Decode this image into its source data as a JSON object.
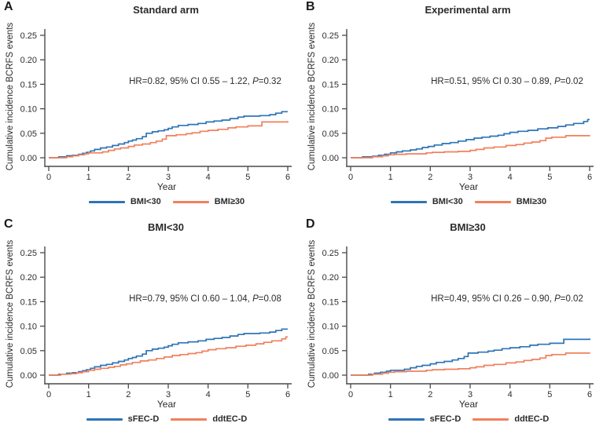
{
  "figure": {
    "background": "#ffffff",
    "colors": {
      "blue": "#2e74b5",
      "orange": "#f0805c",
      "axis": "#4a4a4a",
      "text": "#2e2e2e"
    }
  },
  "chart_data": {
    "type": "line",
    "subtype": "step-cumulative-incidence",
    "xlabel": "Year",
    "ylabel": "Cumulative incidence BCRFS events",
    "xlim": [
      0,
      6
    ],
    "ylim": [
      0,
      0.25
    ],
    "grid": false,
    "legend_position": "bottom",
    "xticks": [
      {
        "v": 0,
        "label": "0"
      },
      {
        "v": 1,
        "label": "1"
      },
      {
        "v": 2,
        "label": "2"
      },
      {
        "v": 3,
        "label": "3"
      },
      {
        "v": 4,
        "label": "4"
      },
      {
        "v": 5,
        "label": "5"
      },
      {
        "v": 6,
        "label": "6"
      }
    ],
    "yticks": [
      {
        "v": 0,
        "label": "0.00"
      },
      {
        "v": 0.05,
        "label": "0.05"
      },
      {
        "v": 0.1,
        "label": "0.10"
      },
      {
        "v": 0.15,
        "label": "0.15"
      },
      {
        "v": 0.2,
        "label": "0.20"
      },
      {
        "v": 0.25,
        "label": "0.25"
      }
    ],
    "panels": [
      {
        "letter": "A",
        "title": "Standard arm",
        "annotation": {
          "pre": "HR=0.82, 95% CI 0.55 – 1.22, ",
          "p": "P",
          "post": "=0.32"
        },
        "series": [
          {
            "name": "BMI<30",
            "color": "#2e74b5",
            "x": [
              0,
              0.25,
              0.45,
              0.6,
              0.75,
              0.85,
              0.95,
              1.05,
              1.15,
              1.3,
              1.45,
              1.6,
              1.75,
              1.9,
              2.0,
              2.1,
              2.2,
              2.35,
              2.45,
              2.6,
              2.75,
              2.9,
              3.0,
              3.1,
              3.25,
              3.5,
              3.75,
              3.95,
              4.15,
              4.35,
              4.55,
              4.75,
              4.9,
              5.3,
              5.55,
              5.7,
              5.85,
              6.0
            ],
            "y": [
              0,
              0.002,
              0.004,
              0.005,
              0.007,
              0.009,
              0.011,
              0.014,
              0.017,
              0.02,
              0.022,
              0.025,
              0.028,
              0.031,
              0.034,
              0.036,
              0.039,
              0.043,
              0.05,
              0.053,
              0.055,
              0.057,
              0.06,
              0.063,
              0.066,
              0.068,
              0.07,
              0.073,
              0.075,
              0.077,
              0.08,
              0.083,
              0.085,
              0.086,
              0.088,
              0.091,
              0.094,
              0.094
            ]
          },
          {
            "name": "BMI≥30",
            "color": "#f0805c",
            "x": [
              0,
              0.45,
              0.6,
              0.75,
              0.9,
              1.0,
              1.35,
              1.5,
              1.65,
              1.8,
              2.0,
              2.15,
              2.35,
              2.55,
              2.7,
              2.85,
              2.95,
              3.2,
              3.45,
              3.6,
              3.8,
              4.0,
              4.25,
              4.5,
              4.7,
              5.0,
              5.35,
              6.0
            ],
            "y": [
              0,
              0.002,
              0.004,
              0.006,
              0.008,
              0.01,
              0.012,
              0.015,
              0.018,
              0.02,
              0.023,
              0.026,
              0.028,
              0.031,
              0.034,
              0.038,
              0.045,
              0.047,
              0.049,
              0.051,
              0.054,
              0.056,
              0.058,
              0.061,
              0.063,
              0.065,
              0.073,
              0.075
            ]
          }
        ]
      },
      {
        "letter": "B",
        "title": "Experimental arm",
        "annotation": {
          "pre": "HR=0.51, 95% CI 0.30 – 0.89, ",
          "p": "P",
          "post": "=0.02"
        },
        "series": [
          {
            "name": "BMI<30",
            "color": "#2e74b5",
            "x": [
              0,
              0.3,
              0.55,
              0.7,
              0.85,
              1.0,
              1.15,
              1.3,
              1.5,
              1.65,
              1.8,
              1.95,
              2.1,
              2.3,
              2.5,
              2.7,
              2.9,
              3.1,
              3.3,
              3.5,
              3.7,
              3.85,
              4.0,
              4.2,
              4.45,
              4.7,
              4.95,
              5.2,
              5.4,
              5.6,
              5.85,
              5.95,
              6.0
            ],
            "y": [
              0,
              0.002,
              0.003,
              0.005,
              0.007,
              0.01,
              0.012,
              0.014,
              0.016,
              0.018,
              0.021,
              0.023,
              0.026,
              0.029,
              0.031,
              0.034,
              0.037,
              0.04,
              0.042,
              0.044,
              0.046,
              0.049,
              0.052,
              0.054,
              0.056,
              0.059,
              0.061,
              0.064,
              0.067,
              0.07,
              0.074,
              0.078,
              0.078
            ]
          },
          {
            "name": "BMI≥30",
            "color": "#f0805c",
            "x": [
              0,
              0.55,
              0.8,
              0.95,
              1.1,
              1.4,
              1.9,
              2.05,
              2.35,
              2.7,
              3.0,
              3.15,
              3.35,
              3.6,
              3.9,
              4.15,
              4.35,
              4.55,
              4.75,
              4.9,
              5.05,
              5.4,
              6.0
            ],
            "y": [
              0,
              0.002,
              0.004,
              0.006,
              0.007,
              0.008,
              0.01,
              0.011,
              0.012,
              0.013,
              0.015,
              0.017,
              0.02,
              0.022,
              0.025,
              0.027,
              0.03,
              0.032,
              0.035,
              0.04,
              0.042,
              0.045,
              0.046
            ]
          }
        ]
      },
      {
        "letter": "C",
        "title": "BMI<30",
        "annotation": {
          "pre": "HR=0.79, 95% CI 0.60 – 1.04, ",
          "p": "P",
          "post": "=0.08"
        },
        "series": [
          {
            "name": "sFEC-D",
            "color": "#2e74b5",
            "x": [
              0,
              0.25,
              0.45,
              0.6,
              0.75,
              0.85,
              0.95,
              1.05,
              1.15,
              1.3,
              1.45,
              1.6,
              1.75,
              1.9,
              2.0,
              2.1,
              2.2,
              2.35,
              2.45,
              2.6,
              2.75,
              2.9,
              3.0,
              3.1,
              3.25,
              3.5,
              3.75,
              3.95,
              4.15,
              4.35,
              4.55,
              4.75,
              4.9,
              5.3,
              5.55,
              5.7,
              5.85,
              6.0
            ],
            "y": [
              0,
              0.002,
              0.004,
              0.005,
              0.007,
              0.009,
              0.011,
              0.014,
              0.017,
              0.02,
              0.022,
              0.025,
              0.028,
              0.031,
              0.034,
              0.036,
              0.039,
              0.043,
              0.05,
              0.053,
              0.055,
              0.057,
              0.06,
              0.063,
              0.066,
              0.068,
              0.07,
              0.073,
              0.075,
              0.077,
              0.08,
              0.083,
              0.085,
              0.086,
              0.088,
              0.091,
              0.094,
              0.094
            ]
          },
          {
            "name": "ddtEC-D",
            "color": "#f0805c",
            "x": [
              0,
              0.3,
              0.55,
              0.7,
              0.85,
              1.0,
              1.15,
              1.3,
              1.5,
              1.65,
              1.8,
              1.95,
              2.1,
              2.3,
              2.5,
              2.7,
              2.9,
              3.1,
              3.3,
              3.5,
              3.7,
              3.85,
              4.0,
              4.2,
              4.45,
              4.7,
              4.95,
              5.2,
              5.4,
              5.6,
              5.85,
              5.95,
              6.0
            ],
            "y": [
              0,
              0.002,
              0.003,
              0.005,
              0.007,
              0.01,
              0.012,
              0.014,
              0.016,
              0.018,
              0.021,
              0.023,
              0.026,
              0.029,
              0.031,
              0.034,
              0.037,
              0.04,
              0.042,
              0.044,
              0.046,
              0.049,
              0.052,
              0.054,
              0.056,
              0.059,
              0.061,
              0.064,
              0.067,
              0.07,
              0.074,
              0.078,
              0.078
            ]
          }
        ]
      },
      {
        "letter": "D",
        "title": "BMI≥30",
        "annotation": {
          "pre": "HR=0.49, 95% CI 0.26 – 0.90, ",
          "p": "P",
          "post": "=0.02"
        },
        "series": [
          {
            "name": "sFEC-D",
            "color": "#2e74b5",
            "x": [
              0,
              0.45,
              0.6,
              0.75,
              0.9,
              1.0,
              1.35,
              1.5,
              1.65,
              1.8,
              2.0,
              2.15,
              2.35,
              2.55,
              2.7,
              2.85,
              2.95,
              3.2,
              3.45,
              3.6,
              3.8,
              4.0,
              4.25,
              4.5,
              4.7,
              5.0,
              5.35,
              6.0
            ],
            "y": [
              0,
              0.002,
              0.004,
              0.006,
              0.008,
              0.01,
              0.012,
              0.015,
              0.018,
              0.02,
              0.023,
              0.026,
              0.028,
              0.031,
              0.034,
              0.038,
              0.045,
              0.047,
              0.049,
              0.051,
              0.054,
              0.056,
              0.058,
              0.061,
              0.063,
              0.065,
              0.073,
              0.075
            ]
          },
          {
            "name": "ddtEC-D",
            "color": "#f0805c",
            "x": [
              0,
              0.55,
              0.8,
              0.95,
              1.1,
              1.4,
              1.9,
              2.05,
              2.35,
              2.7,
              3.0,
              3.15,
              3.35,
              3.6,
              3.9,
              4.15,
              4.35,
              4.55,
              4.75,
              4.9,
              5.05,
              5.4,
              6.0
            ],
            "y": [
              0,
              0.002,
              0.004,
              0.006,
              0.007,
              0.008,
              0.01,
              0.011,
              0.012,
              0.013,
              0.015,
              0.017,
              0.02,
              0.022,
              0.025,
              0.027,
              0.03,
              0.032,
              0.035,
              0.04,
              0.042,
              0.045,
              0.046
            ]
          }
        ]
      }
    ]
  }
}
